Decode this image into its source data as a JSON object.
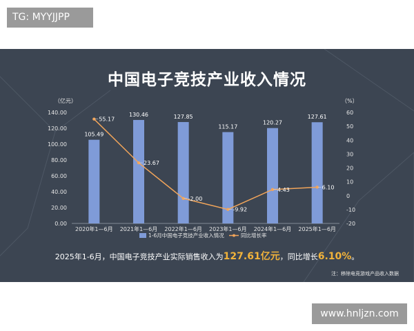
{
  "watermark_top": "TG: MYYJJPP",
  "watermark_bottom": "www.hnljzn.com",
  "summary": {
    "prefix": "2025年1-6月，中国电子竞技产业实际销售收入为",
    "revenue": "127.61亿元",
    "middle": "，同比增长",
    "growth": "6.10%",
    "suffix": "。"
  },
  "note": "注：移除电竞游戏产品收入数据",
  "colors": {
    "background": "#3c4552",
    "bar": "#7f9bd8",
    "line": "#f2a55a",
    "highlight": "#f2b33a"
  },
  "chart_data": {
    "type": "bar",
    "title": "中国电子竞技产业收入情况",
    "categories": [
      "2020年1—6月",
      "2021年1—6月",
      "2022年1—6月",
      "2023年1—6月",
      "2024年1—6月",
      "2025年1—6月"
    ],
    "series": [
      {
        "name": "1-6月中国电子竞技产业收入情况",
        "type": "bar",
        "axis": "left",
        "values": [
          105.49,
          130.46,
          127.85,
          115.17,
          120.27,
          127.61
        ],
        "labels": [
          "105.49",
          "130.46",
          "127.85",
          "115.17",
          "120.27",
          "127.61"
        ]
      },
      {
        "name": "同比增长率",
        "type": "line",
        "axis": "right",
        "values": [
          55.17,
          23.67,
          -2.0,
          -9.92,
          4.43,
          6.1
        ],
        "labels": [
          "55.17",
          "23.67",
          "-2.00",
          "-9.92",
          "4.43",
          "6.10"
        ]
      }
    ],
    "left_axis": {
      "unit": "（亿元）",
      "range": [
        0,
        140
      ],
      "ticks": [
        "0.00",
        "20.00",
        "40.00",
        "60.00",
        "80.00",
        "100.00",
        "120.00",
        "140.00"
      ],
      "tick_values": [
        0,
        20,
        40,
        60,
        80,
        100,
        120,
        140
      ]
    },
    "right_axis": {
      "unit": "（%）",
      "range": [
        -20,
        60
      ],
      "ticks": [
        "-20",
        "-10",
        "0",
        "10",
        "20",
        "30",
        "40",
        "50",
        "60"
      ],
      "tick_values": [
        -20,
        -10,
        0,
        10,
        20,
        30,
        40,
        50,
        60
      ]
    },
    "grid": false,
    "legend_position": "bottom-center"
  }
}
